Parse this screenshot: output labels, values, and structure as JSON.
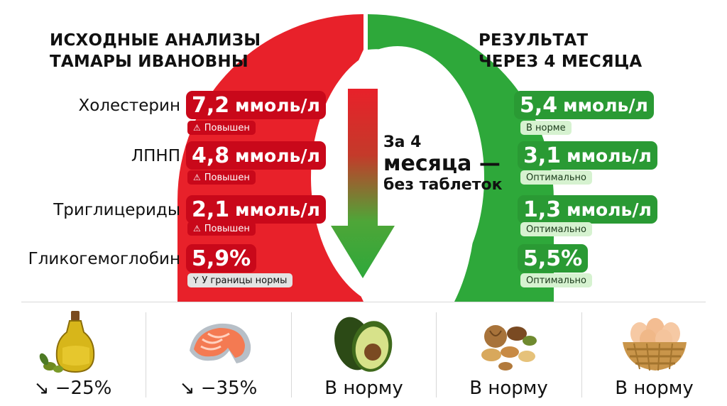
{
  "left_title": [
    "ИСХОДНЫЕ АНАЛИЗЫ",
    "ТАМАРЫ ИВАНОВНЫ"
  ],
  "right_title": [
    "РЕЗУЛЬТАТ",
    "ЧЕРЕЗ 4 МЕСЯЦА"
  ],
  "center_text": {
    "line1": "За 4",
    "line2": "месяца —",
    "line3": "без таблеток"
  },
  "metrics": [
    {
      "name": "Холестерин",
      "before": {
        "value": "7,2",
        "unit": "ммоль/л",
        "note": "Повышен",
        "note_icon": "⚠"
      },
      "after": {
        "value": "5,4",
        "unit": "ммоль/л",
        "note": "В норме"
      }
    },
    {
      "name": "ЛПНП",
      "before": {
        "value": "4,8",
        "unit": "ммоль/л",
        "note": "Повышен",
        "note_icon": "⚠"
      },
      "after": {
        "value": "3,1",
        "unit": "ммоль/л",
        "note": "Оптимально"
      }
    },
    {
      "name": "Триглицериды",
      "before": {
        "value": "2,1",
        "unit": "ммоль/л",
        "note": "Повышен",
        "note_icon": "⚠"
      },
      "after": {
        "value": "1,3",
        "unit": "ммоль/л",
        "note": "Оптимально"
      }
    },
    {
      "name": "Гликогемоглобин",
      "before": {
        "value": "5,9%",
        "unit": "",
        "note": "У границы нормы",
        "note_icon": "Y"
      },
      "after": {
        "value": "5,5%",
        "unit": "",
        "note": "Оптимально"
      }
    }
  ],
  "foods": [
    {
      "icon": "olive-oil-icon",
      "label": "↘ −25%"
    },
    {
      "icon": "salmon-steak-icon",
      "label": "↘ −35%"
    },
    {
      "icon": "avocado-icon",
      "label": "В норму"
    },
    {
      "icon": "nuts-icon",
      "label": "В норму"
    },
    {
      "icon": "eggs-basket-icon",
      "label": "В норму"
    }
  ],
  "colors": {
    "red": "#e8212a",
    "dark_red": "#c9081a",
    "green": "#2ea83a",
    "dark_green": "#2a9a34",
    "light_green": "#d6f2d0"
  }
}
